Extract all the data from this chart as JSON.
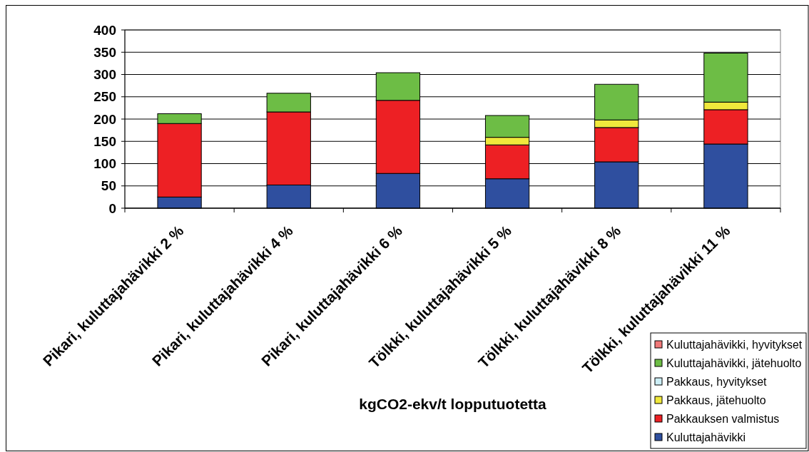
{
  "chart_data": {
    "type": "bar",
    "stacked": true,
    "categories": [
      "Pikari, kuluttajahävikki 2 %",
      "Pikari, kuluttajahävikki 4 %",
      "Pikari, kuluttajahävikki 6 %",
      "Tölkki, kuluttajahävikki 5 %",
      "Tölkki, kuluttajahävikki 8 %",
      "Tölkki, kuluttajahävikki 11 %"
    ],
    "series": [
      {
        "name": "Kuluttajahävikki",
        "color": "#2f4f9f",
        "values": [
          25,
          52,
          78,
          66,
          104,
          144
        ]
      },
      {
        "name": "Pakkauksen valmistus",
        "color": "#ed2024",
        "values": [
          165,
          164,
          164,
          76,
          77,
          77
        ]
      },
      {
        "name": "Pakkaus, jätehuolto",
        "color": "#f0e83c",
        "values": [
          null,
          null,
          null,
          17,
          17,
          17
        ]
      },
      {
        "name": "Pakkaus, hyvitykset",
        "color": "#cceef6",
        "values": [
          null,
          null,
          null,
          null,
          null,
          null
        ]
      },
      {
        "name": "Kuluttajahävikki, jätehuolto",
        "color": "#6dbd45",
        "values": [
          22,
          42,
          62,
          49,
          80,
          110
        ]
      },
      {
        "name": "Kuluttajahävikki, hyvitykset",
        "color": "#f07878",
        "values": [
          null,
          null,
          null,
          null,
          null,
          null
        ]
      }
    ],
    "xlabel": "kgCO2-ekv/t lopputuotetta",
    "ylim": [
      0,
      400
    ],
    "yticks": [
      0,
      50,
      100,
      150,
      200,
      250,
      300,
      350,
      400
    ],
    "grid": "y",
    "legend": "bottom right"
  }
}
